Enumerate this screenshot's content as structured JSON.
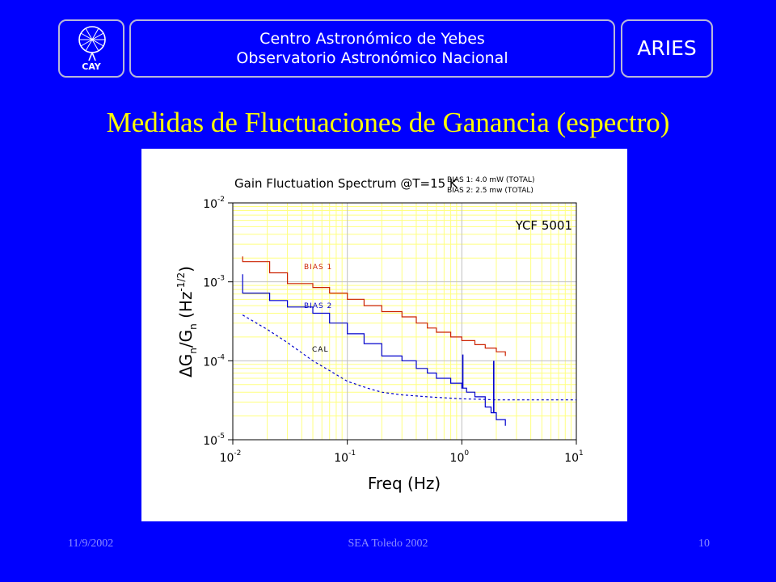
{
  "header": {
    "logo_text": "CAY",
    "institution_line1": "Centro Astronómico de Yebes",
    "institution_line2": "Observatorio Astronómico Nacional",
    "project": "ARIES"
  },
  "slide": {
    "title": "Medidas de Fluctuaciones de Ganancia (espectro)"
  },
  "footer": {
    "date": "11/9/2002",
    "center": "SEA Toledo 2002",
    "page": "10"
  },
  "colors": {
    "background": "#0000ff",
    "title": "#ffff00",
    "footer": "#8c8cff",
    "bias1": "#cc2200",
    "bias2": "#0000cc",
    "cal": "#0000cc",
    "grid": "#ffff80"
  },
  "chart_data": {
    "type": "line",
    "title": "Gain Fluctuation Spectrum @T=15 K",
    "bias_notes": [
      "BIAS 1: 4.0 mW (TOTAL)",
      "BIAS 2: 2.5 mw (TOTAL)"
    ],
    "device_label": "YCF 5001",
    "xlabel": "Freq (Hz)",
    "ylabel": "ΔGn/Gn (Hz^-1/2)",
    "ylabel_parts": {
      "delta": "Δ",
      "g1": "G",
      "sub1": "n",
      "slash": "/G",
      "sub2": "n",
      "unit": " (Hz",
      "exp": "-1/2",
      "close": ")"
    },
    "xscale": "log",
    "yscale": "log",
    "xlim": [
      0.01,
      10
    ],
    "ylim": [
      1e-05,
      0.01
    ],
    "grid": true,
    "x_ticks": [
      {
        "value": 0.01,
        "base": "10",
        "exp": "-2"
      },
      {
        "value": 0.1,
        "base": "10",
        "exp": "-1"
      },
      {
        "value": 1,
        "base": "10",
        "exp": "0"
      },
      {
        "value": 10,
        "base": "10",
        "exp": "1"
      }
    ],
    "y_ticks": [
      {
        "value": 0.01,
        "base": "10",
        "exp": "-2"
      },
      {
        "value": 0.001,
        "base": "10",
        "exp": "-3"
      },
      {
        "value": 0.0001,
        "base": "10",
        "exp": "-4"
      },
      {
        "value": 1e-05,
        "base": "10",
        "exp": "-5"
      }
    ],
    "series": [
      {
        "name": "BIAS 1",
        "style": "step",
        "x": [
          0.0122,
          0.0122,
          0.021,
          0.03,
          0.04,
          0.05,
          0.07,
          0.1,
          0.14,
          0.2,
          0.3,
          0.4,
          0.5,
          0.6,
          0.8,
          1.0,
          1.3,
          1.6,
          2.0,
          2.4
        ],
        "y": [
          0.0021,
          0.0018,
          0.0013,
          0.00095,
          0.00095,
          0.00085,
          0.00072,
          0.0006,
          0.0005,
          0.00042,
          0.00036,
          0.0003,
          0.00026,
          0.00023,
          0.0002,
          0.00018,
          0.00016,
          0.000145,
          0.00013,
          0.000115
        ]
      },
      {
        "name": "BIAS 2",
        "style": "step",
        "x": [
          0.0122,
          0.0122,
          0.021,
          0.03,
          0.05,
          0.07,
          0.1,
          0.14,
          0.2,
          0.3,
          0.4,
          0.5,
          0.6,
          0.8,
          1.0,
          1.1,
          1.3,
          1.6,
          1.8,
          2.0,
          2.4
        ],
        "y": [
          0.00125,
          0.00072,
          0.00058,
          0.00048,
          0.0004,
          0.0003,
          0.00022,
          0.000165,
          0.000115,
          0.0001,
          8e-05,
          7e-05,
          6e-05,
          5.2e-05,
          4.5e-05,
          4e-05,
          3.5e-05,
          2.6e-05,
          2.2e-05,
          1.8e-05,
          1.5e-05
        ],
        "peaks": [
          {
            "x": 1.02,
            "y": 0.00012
          },
          {
            "x": 1.9,
            "y": 0.0001
          }
        ]
      },
      {
        "name": "CAL",
        "style": "dashed",
        "x": [
          0.0122,
          0.02,
          0.03,
          0.05,
          0.07,
          0.1,
          0.15,
          0.2,
          0.3,
          0.5,
          0.7,
          1.0,
          1.5,
          2.0,
          3.0,
          10.0
        ],
        "y": [
          0.00038,
          0.00025,
          0.00017,
          0.0001,
          7.5e-05,
          5.5e-05,
          4.5e-05,
          4e-05,
          3.7e-05,
          3.5e-05,
          3.4e-05,
          3.3e-05,
          3.25e-05,
          3.2e-05,
          3.2e-05,
          3.2e-05
        ]
      }
    ]
  }
}
